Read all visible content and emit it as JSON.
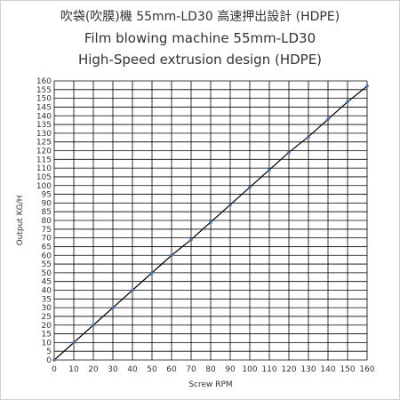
{
  "chart_data": {
    "type": "line",
    "title": "吹袋(吹膜)機 55mm-LD30  高速押出設計 (HDPE)",
    "subtitle": "Film blowing machine 55mm-LD30",
    "subtitle2": "High-Speed extrusion design (HDPE)",
    "xlabel": "Screw RPM",
    "ylabel": "Output KG/H",
    "xlim": [
      0,
      160
    ],
    "ylim": [
      0,
      160
    ],
    "x_ticks": [
      0,
      10,
      20,
      30,
      40,
      50,
      60,
      70,
      80,
      90,
      100,
      110,
      120,
      130,
      140,
      150,
      160
    ],
    "y_ticks": [
      0,
      5,
      10,
      15,
      20,
      25,
      30,
      35,
      40,
      45,
      50,
      55,
      60,
      65,
      70,
      75,
      80,
      85,
      90,
      95,
      100,
      105,
      110,
      115,
      120,
      125,
      130,
      135,
      140,
      145,
      150,
      155,
      160
    ],
    "grid": true,
    "series": [
      {
        "x": [
          0,
          10,
          20,
          30,
          40,
          50,
          60,
          70,
          80,
          90,
          100,
          110,
          120,
          130,
          140,
          150,
          160
        ],
        "y": [
          0,
          10,
          20,
          30,
          40,
          50,
          60,
          69,
          79,
          89,
          99,
          109,
          119,
          128,
          138,
          148,
          157
        ],
        "color": "#000000",
        "marker_color": "#4a6fa5"
      }
    ]
  }
}
